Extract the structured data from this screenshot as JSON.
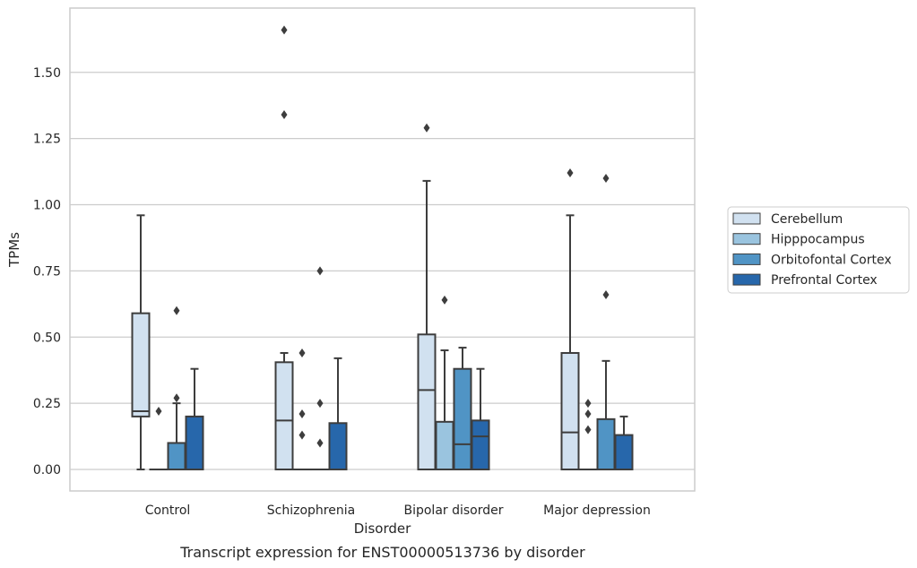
{
  "chart_data": {
    "type": "box",
    "xlabel": "Disorder",
    "ylabel": "TPMs",
    "caption": "Transcript expression for ENST00000513736 by disorder",
    "ylim": [
      -0.08,
      1.74
    ],
    "yticks": [
      "0.00",
      "0.25",
      "0.50",
      "0.75",
      "1.00",
      "1.25",
      "1.50"
    ],
    "grid": "horizontal",
    "legend_position": "right",
    "categories": [
      "Control",
      "Schizophrenia",
      "Bipolar disorder",
      "Major depression"
    ],
    "series": [
      {
        "name": "Cerebellum",
        "color": "#d1e1f0",
        "boxes": [
          {
            "q1": 0.2,
            "median": 0.22,
            "q3": 0.59,
            "whisker_low": 0.0,
            "whisker_high": 0.96,
            "outliers": []
          },
          {
            "q1": 0.0,
            "median": 0.185,
            "q3": 0.405,
            "whisker_low": 0.0,
            "whisker_high": 0.44,
            "outliers": [
              1.34,
              1.66
            ]
          },
          {
            "q1": 0.0,
            "median": 0.3,
            "q3": 0.51,
            "whisker_low": 0.0,
            "whisker_high": 1.09,
            "outliers": [
              1.29
            ]
          },
          {
            "q1": 0.0,
            "median": 0.14,
            "q3": 0.44,
            "whisker_low": 0.0,
            "whisker_high": 0.96,
            "outliers": [
              1.12
            ]
          }
        ]
      },
      {
        "name": "Hipppocampus",
        "color": "#9ac4df",
        "boxes": [
          {
            "q1": 0.0,
            "median": 0.0,
            "q3": 0.0,
            "whisker_low": 0.0,
            "whisker_high": 0.0,
            "outliers": [
              0.22
            ]
          },
          {
            "q1": 0.0,
            "median": 0.0,
            "q3": 0.0,
            "whisker_low": 0.0,
            "whisker_high": 0.0,
            "outliers": [
              0.13,
              0.21,
              0.44
            ]
          },
          {
            "q1": 0.0,
            "median": 0.0,
            "q3": 0.18,
            "whisker_low": 0.0,
            "whisker_high": 0.45,
            "outliers": [
              0.64
            ]
          },
          {
            "q1": 0.0,
            "median": 0.0,
            "q3": 0.0,
            "whisker_low": 0.0,
            "whisker_high": 0.0,
            "outliers": [
              0.15,
              0.21,
              0.25
            ]
          }
        ]
      },
      {
        "name": "Orbitofontal Cortex",
        "color": "#5094c5",
        "boxes": [
          {
            "q1": 0.0,
            "median": 0.0,
            "q3": 0.1,
            "whisker_low": 0.0,
            "whisker_high": 0.25,
            "outliers": [
              0.27,
              0.6
            ]
          },
          {
            "q1": 0.0,
            "median": 0.0,
            "q3": 0.0,
            "whisker_low": 0.0,
            "whisker_high": 0.0,
            "outliers": [
              0.1,
              0.25,
              0.75
            ]
          },
          {
            "q1": 0.0,
            "median": 0.095,
            "q3": 0.38,
            "whisker_low": 0.0,
            "whisker_high": 0.46,
            "outliers": []
          },
          {
            "q1": 0.0,
            "median": 0.0,
            "q3": 0.19,
            "whisker_low": 0.0,
            "whisker_high": 0.41,
            "outliers": [
              0.66,
              1.1
            ]
          }
        ]
      },
      {
        "name": "Prefrontal Cortex",
        "color": "#2767ab",
        "boxes": [
          {
            "q1": 0.0,
            "median": 0.0,
            "q3": 0.2,
            "whisker_low": 0.0,
            "whisker_high": 0.38,
            "outliers": []
          },
          {
            "q1": 0.0,
            "median": 0.0,
            "q3": 0.175,
            "whisker_low": 0.0,
            "whisker_high": 0.42,
            "outliers": []
          },
          {
            "q1": 0.0,
            "median": 0.125,
            "q3": 0.185,
            "whisker_low": 0.0,
            "whisker_high": 0.38,
            "outliers": []
          },
          {
            "q1": 0.0,
            "median": 0.0,
            "q3": 0.13,
            "whisker_low": 0.0,
            "whisker_high": 0.2,
            "outliers": []
          }
        ]
      }
    ]
  }
}
